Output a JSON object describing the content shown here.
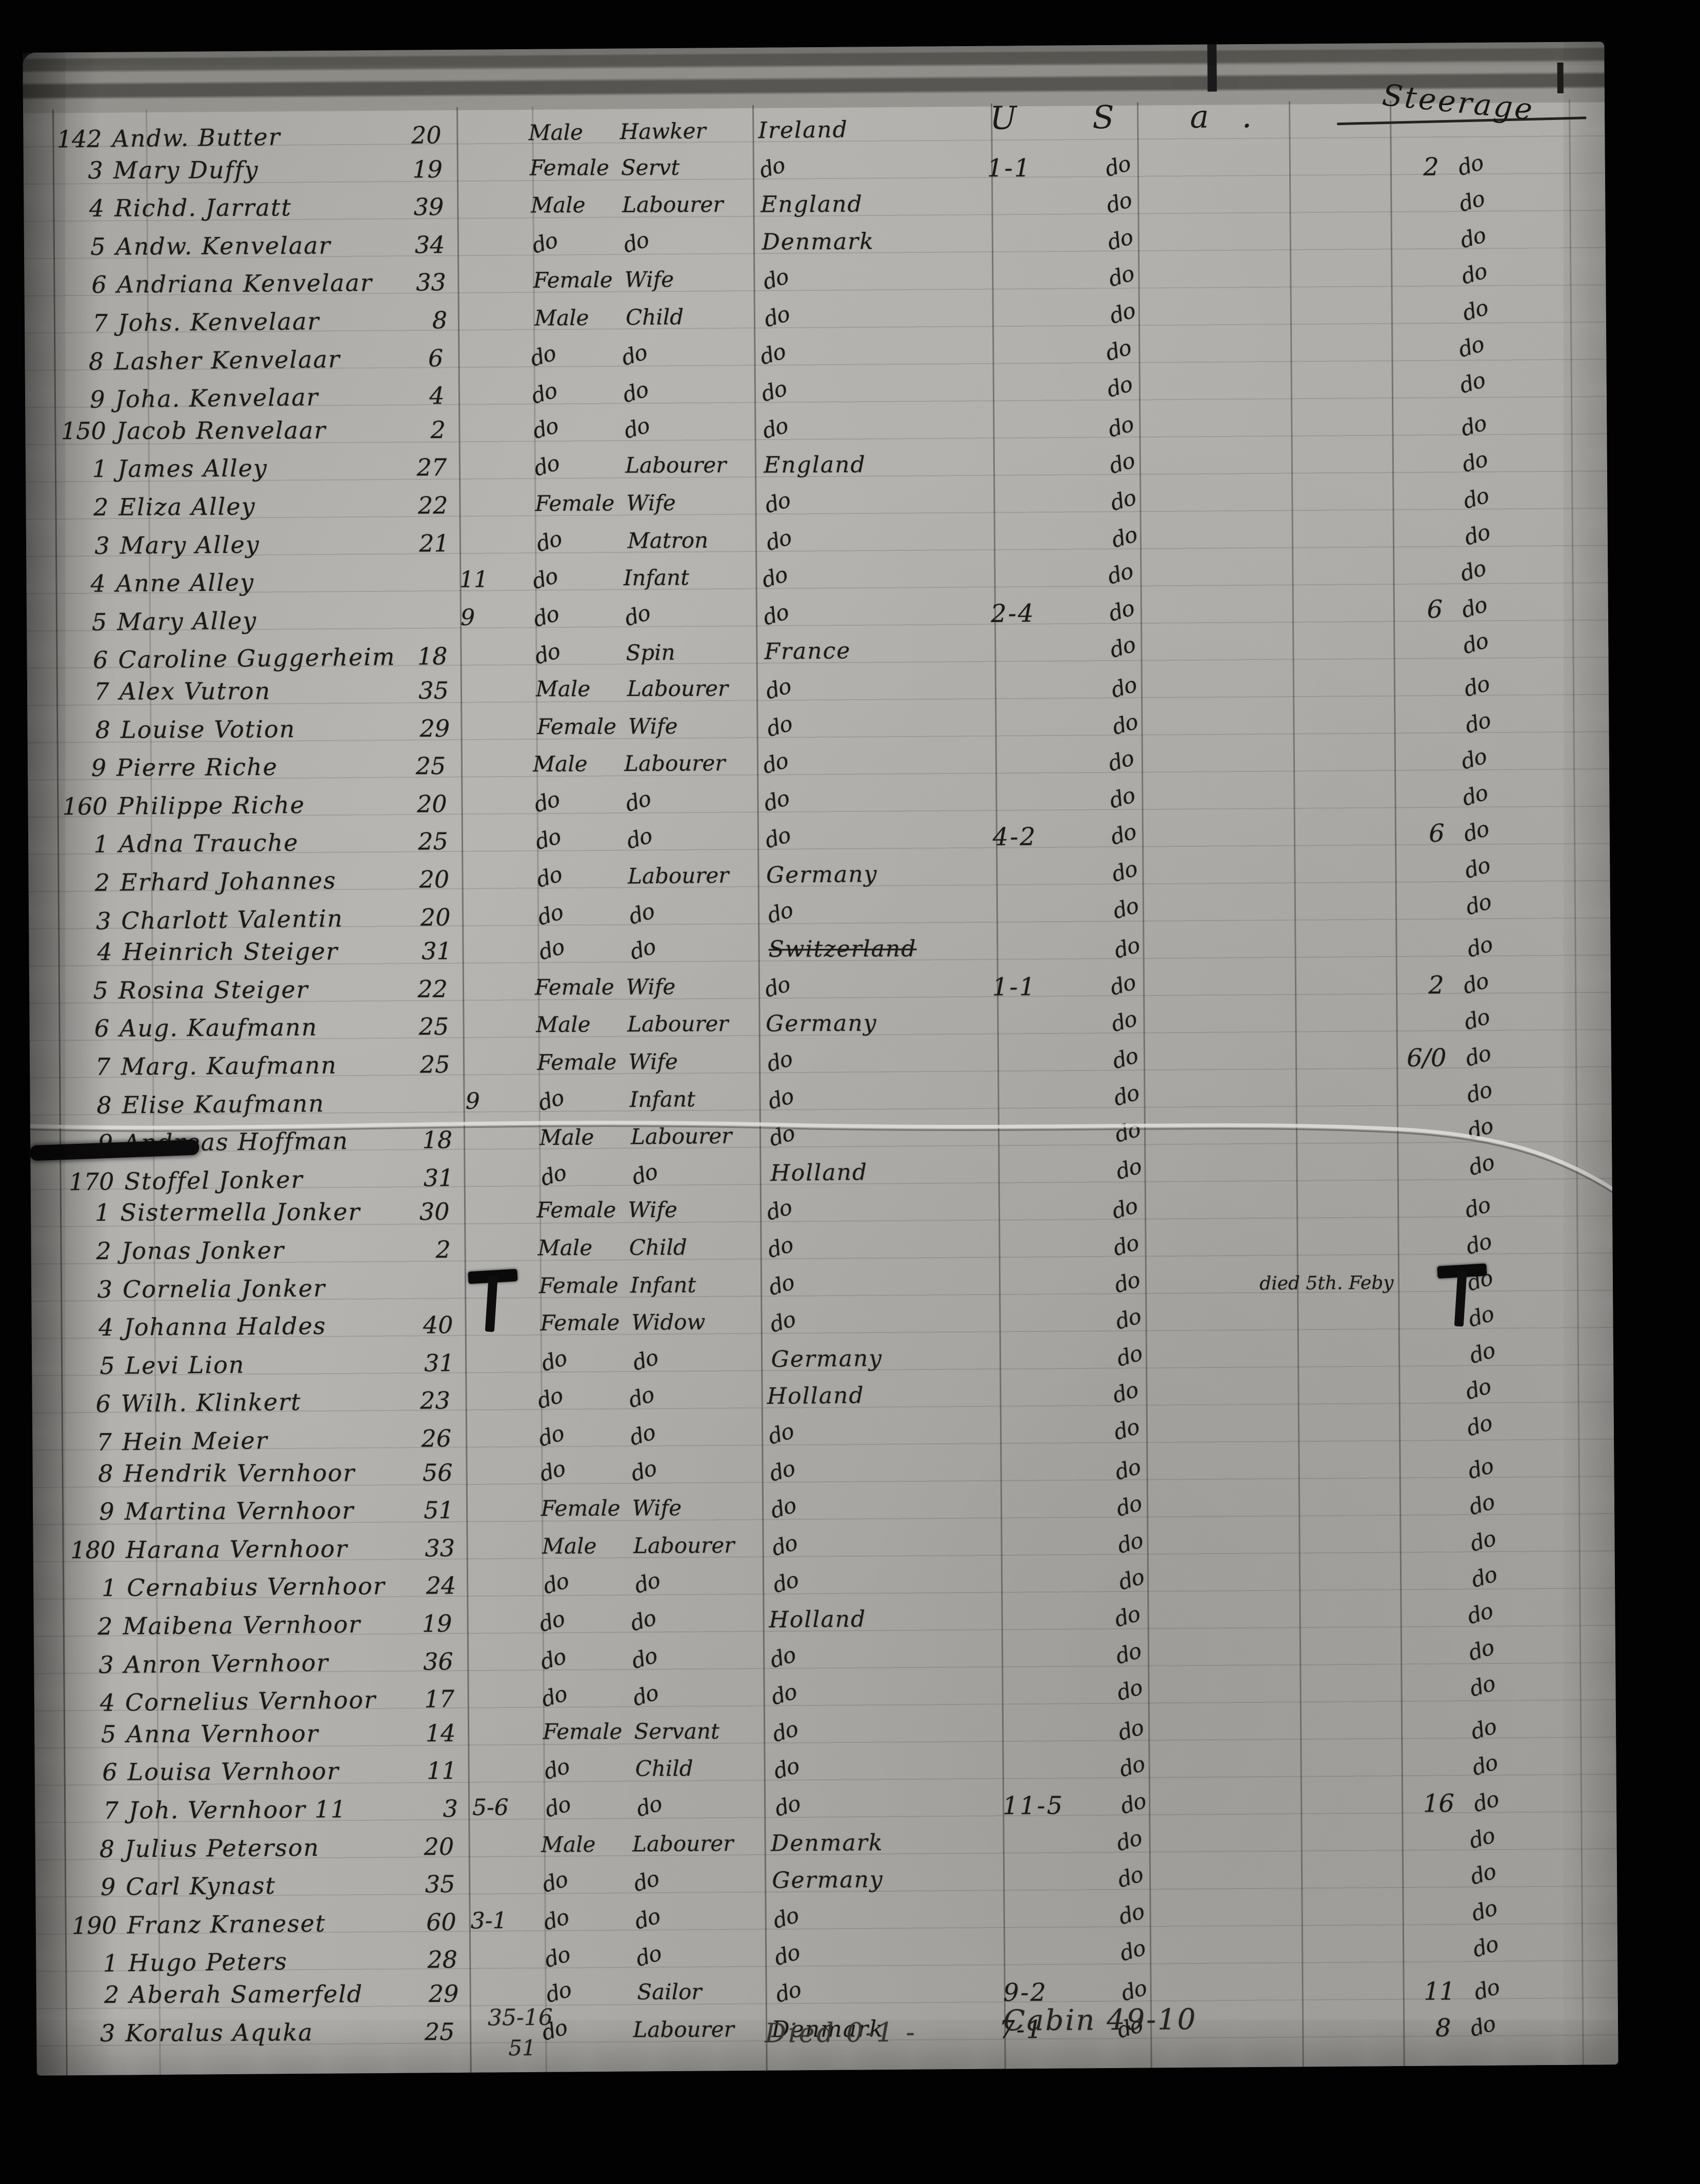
{
  "ledger": {
    "us_header": "U S a.",
    "steerage_header": "Steerage",
    "ink_color": "#191917",
    "paper_color": "#b3b1ad",
    "annotations": {
      "bottom_left_1": "35-16",
      "bottom_left_2": "51",
      "bottom_died": "Died 0-1 -",
      "bottom_cabin": "Cabin 49-10"
    },
    "rows": [
      {
        "n": "142",
        "name": "Andw. Butter",
        "age": "20",
        "m": "",
        "sex": "Male",
        "occ": "Hawker",
        "cty": "Ireland",
        "us": "",
        "usd": "",
        "stn": "",
        "std": "",
        "note": "",
        "mark": ""
      },
      {
        "n": "3",
        "name": "Mary Duffy",
        "age": "19",
        "m": "",
        "sex": "Female",
        "occ": "Servt",
        "cty": "do",
        "us": "1-1",
        "usd": "do",
        "stn": "2",
        "std": "do",
        "note": "",
        "mark": ""
      },
      {
        "n": "4",
        "name": "Richd. Jarratt",
        "age": "39",
        "m": "",
        "sex": "Male",
        "occ": "Labourer",
        "cty": "England",
        "us": "",
        "usd": "do",
        "stn": "",
        "std": "do",
        "note": "",
        "mark": ""
      },
      {
        "n": "5",
        "name": "Andw. Kenvelaar",
        "age": "34",
        "m": "",
        "sex": "do",
        "occ": "do",
        "cty": "Denmark",
        "us": "",
        "usd": "do",
        "stn": "",
        "std": "do",
        "note": "",
        "mark": ""
      },
      {
        "n": "6",
        "name": "Andriana Kenvelaar",
        "age": "33",
        "m": "",
        "sex": "Female",
        "occ": "Wife",
        "cty": "do",
        "us": "",
        "usd": "do",
        "stn": "",
        "std": "do",
        "note": "",
        "mark": ""
      },
      {
        "n": "7",
        "name": "Johs. Kenvelaar",
        "age": "8",
        "m": "",
        "sex": "Male",
        "occ": "Child",
        "cty": "do",
        "us": "",
        "usd": "do",
        "stn": "",
        "std": "do",
        "note": "",
        "mark": ""
      },
      {
        "n": "8",
        "name": "Lasher Kenvelaar",
        "age": "6",
        "m": "",
        "sex": "do",
        "occ": "do",
        "cty": "do",
        "us": "",
        "usd": "do",
        "stn": "",
        "std": "do",
        "note": "",
        "mark": ""
      },
      {
        "n": "9",
        "name": "Joha. Kenvelaar",
        "age": "4",
        "m": "",
        "sex": "do",
        "occ": "do",
        "cty": "do",
        "us": "",
        "usd": "do",
        "stn": "",
        "std": "do",
        "note": "",
        "mark": ""
      },
      {
        "n": "150",
        "name": "Jacob Renvelaar",
        "age": "2",
        "m": "",
        "sex": "do",
        "occ": "do",
        "cty": "do",
        "us": "",
        "usd": "do",
        "stn": "",
        "std": "do",
        "note": "",
        "mark": ""
      },
      {
        "n": "1",
        "name": "James Alley",
        "age": "27",
        "m": "",
        "sex": "do",
        "occ": "Labourer",
        "cty": "England",
        "us": "",
        "usd": "do",
        "stn": "",
        "std": "do",
        "note": "",
        "mark": ""
      },
      {
        "n": "2",
        "name": "Eliza Alley",
        "age": "22",
        "m": "",
        "sex": "Female",
        "occ": "Wife",
        "cty": "do",
        "us": "",
        "usd": "do",
        "stn": "",
        "std": "do",
        "note": "",
        "mark": ""
      },
      {
        "n": "3",
        "name": "Mary Alley",
        "age": "21",
        "m": "",
        "sex": "do",
        "occ": "Matron",
        "cty": "do",
        "us": "",
        "usd": "do",
        "stn": "",
        "std": "do",
        "note": "",
        "mark": ""
      },
      {
        "n": "4",
        "name": "Anne Alley",
        "age": "",
        "m": "11",
        "sex": "do",
        "occ": "Infant",
        "cty": "do",
        "us": "",
        "usd": "do",
        "stn": "",
        "std": "do",
        "note": "",
        "mark": ""
      },
      {
        "n": "5",
        "name": "Mary Alley",
        "age": "",
        "m": "9",
        "sex": "do",
        "occ": "do",
        "cty": "do",
        "us": "2-4",
        "usd": "do",
        "stn": "6",
        "std": "do",
        "note": "",
        "mark": ""
      },
      {
        "n": "6",
        "name": "Caroline Guggerheim",
        "age": "18",
        "m": "",
        "sex": "do",
        "occ": "Spin",
        "cty": "France",
        "us": "",
        "usd": "do",
        "stn": "",
        "std": "do",
        "note": "",
        "mark": ""
      },
      {
        "n": "7",
        "name": "Alex Vutron",
        "age": "35",
        "m": "",
        "sex": "Male",
        "occ": "Labourer",
        "cty": "do",
        "us": "",
        "usd": "do",
        "stn": "",
        "std": "do",
        "note": "",
        "mark": ""
      },
      {
        "n": "8",
        "name": "Louise Votion",
        "age": "29",
        "m": "",
        "sex": "Female",
        "occ": "Wife",
        "cty": "do",
        "us": "",
        "usd": "do",
        "stn": "",
        "std": "do",
        "note": "",
        "mark": ""
      },
      {
        "n": "9",
        "name": "Pierre Riche",
        "age": "25",
        "m": "",
        "sex": "Male",
        "occ": "Labourer",
        "cty": "do",
        "us": "",
        "usd": "do",
        "stn": "",
        "std": "do",
        "note": "",
        "mark": ""
      },
      {
        "n": "160",
        "name": "Philippe Riche",
        "age": "20",
        "m": "",
        "sex": "do",
        "occ": "do",
        "cty": "do",
        "us": "",
        "usd": "do",
        "stn": "",
        "std": "do",
        "note": "",
        "mark": ""
      },
      {
        "n": "1",
        "name": "Adna Trauche",
        "age": "25",
        "m": "",
        "sex": "do",
        "occ": "do",
        "cty": "do",
        "us": "4-2",
        "usd": "do",
        "stn": "6",
        "std": "do",
        "note": "",
        "mark": ""
      },
      {
        "n": "2",
        "name": "Erhard Johannes",
        "age": "20",
        "m": "",
        "sex": "do",
        "occ": "Labourer",
        "cty": "Germany",
        "us": "",
        "usd": "do",
        "stn": "",
        "std": "do",
        "note": "",
        "mark": ""
      },
      {
        "n": "3",
        "name": "Charlott Valentin",
        "age": "20",
        "m": "",
        "sex": "do",
        "occ": "do",
        "cty": "do",
        "us": "",
        "usd": "do",
        "stn": "",
        "std": "do",
        "note": "",
        "mark": ""
      },
      {
        "n": "4",
        "name": "Heinrich Steiger",
        "age": "31",
        "m": "",
        "sex": "do",
        "occ": "do",
        "cty": "Switzerland",
        "us": "",
        "usd": "do",
        "stn": "",
        "std": "do",
        "note": "",
        "mark": "strike"
      },
      {
        "n": "5",
        "name": "Rosina Steiger",
        "age": "22",
        "m": "",
        "sex": "Female",
        "occ": "Wife",
        "cty": "do",
        "us": "1-1",
        "usd": "do",
        "stn": "2",
        "std": "do",
        "note": "",
        "mark": ""
      },
      {
        "n": "6",
        "name": "Aug. Kaufmann",
        "age": "25",
        "m": "",
        "sex": "Male",
        "occ": "Labourer",
        "cty": "Germany",
        "us": "",
        "usd": "do",
        "stn": "",
        "std": "do",
        "note": "",
        "mark": ""
      },
      {
        "n": "7",
        "name": "Marg. Kaufmann",
        "age": "25",
        "m": "",
        "sex": "Female",
        "occ": "Wife",
        "cty": "do",
        "us": "",
        "usd": "do",
        "stn": "6/0",
        "std": "do",
        "note": "",
        "mark": ""
      },
      {
        "n": "8",
        "name": "Elise Kaufmann",
        "age": "",
        "m": "9",
        "sex": "do",
        "occ": "Infant",
        "cty": "do",
        "us": "",
        "usd": "do",
        "stn": "",
        "std": "do",
        "note": "",
        "mark": ""
      },
      {
        "n": "9",
        "name": "Andreas Hoffman",
        "age": "18",
        "m": "",
        "sex": "Male",
        "occ": "Labourer",
        "cty": "do",
        "us": "",
        "usd": "do",
        "stn": "",
        "std": "do",
        "note": "",
        "mark": "smear"
      },
      {
        "n": "170",
        "name": "Stoffel Jonker",
        "age": "31",
        "m": "",
        "sex": "do",
        "occ": "do",
        "cty": "Holland",
        "us": "",
        "usd": "do",
        "stn": "",
        "std": "do",
        "note": "",
        "mark": ""
      },
      {
        "n": "1",
        "name": "Sistermella Jonker",
        "age": "30",
        "m": "",
        "sex": "Female",
        "occ": "Wife",
        "cty": "do",
        "us": "",
        "usd": "do",
        "stn": "",
        "std": "do",
        "note": "",
        "mark": ""
      },
      {
        "n": "2",
        "name": "Jonas Jonker",
        "age": "2",
        "m": "",
        "sex": "Male",
        "occ": "Child",
        "cty": "do",
        "us": "",
        "usd": "do",
        "stn": "",
        "std": "do",
        "note": "",
        "mark": ""
      },
      {
        "n": "3",
        "name": "Cornelia Jonker",
        "age": "",
        "m": "",
        "sex": "Female",
        "occ": "Infant",
        "cty": "do",
        "us": "",
        "usd": "do",
        "stn": "",
        "std": "do",
        "note": "died 5th. Feby",
        "mark": "tmark"
      },
      {
        "n": "4",
        "name": "Johanna Haldes",
        "age": "40",
        "m": "",
        "sex": "Female",
        "occ": "Widow",
        "cty": "do",
        "us": "",
        "usd": "do",
        "stn": "",
        "std": "do",
        "note": "",
        "mark": ""
      },
      {
        "n": "5",
        "name": "Levi Lion",
        "age": "31",
        "m": "",
        "sex": "do",
        "occ": "do",
        "cty": "Germany",
        "us": "",
        "usd": "do",
        "stn": "",
        "std": "do",
        "note": "",
        "mark": ""
      },
      {
        "n": "6",
        "name": "Wilh. Klinkert",
        "age": "23",
        "m": "",
        "sex": "do",
        "occ": "do",
        "cty": "Holland",
        "us": "",
        "usd": "do",
        "stn": "",
        "std": "do",
        "note": "",
        "mark": ""
      },
      {
        "n": "7",
        "name": "Hein Meier",
        "age": "26",
        "m": "",
        "sex": "do",
        "occ": "do",
        "cty": "do",
        "us": "",
        "usd": "do",
        "stn": "",
        "std": "do",
        "note": "",
        "mark": ""
      },
      {
        "n": "8",
        "name": "Hendrik Vernhoor",
        "age": "56",
        "m": "",
        "sex": "do",
        "occ": "do",
        "cty": "do",
        "us": "",
        "usd": "do",
        "stn": "",
        "std": "do",
        "note": "",
        "mark": ""
      },
      {
        "n": "9",
        "name": "Martina Vernhoor",
        "age": "51",
        "m": "",
        "sex": "Female",
        "occ": "Wife",
        "cty": "do",
        "us": "",
        "usd": "do",
        "stn": "",
        "std": "do",
        "note": "",
        "mark": ""
      },
      {
        "n": "180",
        "name": "Harana Vernhoor",
        "age": "33",
        "m": "",
        "sex": "Male",
        "occ": "Labourer",
        "cty": "do",
        "us": "",
        "usd": "do",
        "stn": "",
        "std": "do",
        "note": "",
        "mark": ""
      },
      {
        "n": "1",
        "name": "Cernabius Vernhoor",
        "age": "24",
        "m": "",
        "sex": "do",
        "occ": "do",
        "cty": "do",
        "us": "",
        "usd": "do",
        "stn": "",
        "std": "do",
        "note": "",
        "mark": ""
      },
      {
        "n": "2",
        "name": "Maibena Vernhoor",
        "age": "19",
        "m": "",
        "sex": "do",
        "occ": "do",
        "cty": "Holland",
        "us": "",
        "usd": "do",
        "stn": "",
        "std": "do",
        "note": "",
        "mark": ""
      },
      {
        "n": "3",
        "name": "Anron Vernhoor",
        "age": "36",
        "m": "",
        "sex": "do",
        "occ": "do",
        "cty": "do",
        "us": "",
        "usd": "do",
        "stn": "",
        "std": "do",
        "note": "",
        "mark": ""
      },
      {
        "n": "4",
        "name": "Cornelius Vernhoor",
        "age": "17",
        "m": "",
        "sex": "do",
        "occ": "do",
        "cty": "do",
        "us": "",
        "usd": "do",
        "stn": "",
        "std": "do",
        "note": "",
        "mark": ""
      },
      {
        "n": "5",
        "name": "Anna Vernhoor",
        "age": "14",
        "m": "",
        "sex": "Female",
        "occ": "Servant",
        "cty": "do",
        "us": "",
        "usd": "do",
        "stn": "",
        "std": "do",
        "note": "",
        "mark": ""
      },
      {
        "n": "6",
        "name": "Louisa Vernhoor",
        "age": "11",
        "m": "",
        "sex": "do",
        "occ": "Child",
        "cty": "do",
        "us": "",
        "usd": "do",
        "stn": "",
        "std": "do",
        "note": "",
        "mark": ""
      },
      {
        "n": "7",
        "name": "Joh. Vernhoor 11",
        "age": "3",
        "m": "5-6",
        "sex": "do",
        "occ": "do",
        "cty": "do",
        "us": "11-5",
        "usd": "do",
        "stn": "16",
        "std": "do",
        "note": "",
        "mark": ""
      },
      {
        "n": "8",
        "name": "Julius Peterson",
        "age": "20",
        "m": "",
        "sex": "Male",
        "occ": "Labourer",
        "cty": "Denmark",
        "us": "",
        "usd": "do",
        "stn": "",
        "std": "do",
        "note": "",
        "mark": ""
      },
      {
        "n": "9",
        "name": "Carl Kynast",
        "age": "35",
        "m": "",
        "sex": "do",
        "occ": "do",
        "cty": "Germany",
        "us": "",
        "usd": "do",
        "stn": "",
        "std": "do",
        "note": "",
        "mark": ""
      },
      {
        "n": "190",
        "name": "Franz Kraneset",
        "age": "60",
        "m": "3-1",
        "sex": "do",
        "occ": "do",
        "cty": "do",
        "us": "",
        "usd": "do",
        "stn": "",
        "std": "do",
        "note": "",
        "mark": ""
      },
      {
        "n": "1",
        "name": "Hugo Peters",
        "age": "28",
        "m": "",
        "sex": "do",
        "occ": "do",
        "cty": "do",
        "us": "",
        "usd": "do",
        "stn": "",
        "std": "do",
        "note": "",
        "mark": ""
      },
      {
        "n": "2",
        "name": "Aberah Samerfeld",
        "age": "29",
        "m": "",
        "sex": "do",
        "occ": "Sailor",
        "cty": "do",
        "us": "9-2",
        "usd": "do",
        "stn": "11",
        "std": "do",
        "note": "",
        "mark": ""
      },
      {
        "n": "3",
        "name": "Koralus Aquka",
        "age": "25",
        "m": "",
        "sex": "do",
        "occ": "Labourer",
        "cty": "Denmark",
        "us": "7-1",
        "usd": "do",
        "stn": "8",
        "std": "do",
        "note": "",
        "mark": ""
      }
    ]
  }
}
